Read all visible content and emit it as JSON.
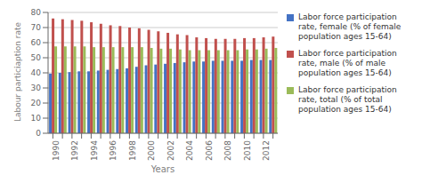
{
  "chart_data": {
    "type": "bar",
    "xlabel": "Years",
    "ylabel": "Labour particiaption rate",
    "categories": [
      "1990",
      null,
      "1992",
      null,
      "1994",
      null,
      "1996",
      null,
      "1998",
      null,
      "2000",
      null,
      "2002",
      null,
      "2004",
      null,
      "2006",
      null,
      "2008",
      null,
      "2010",
      null,
      "2012",
      null
    ],
    "series": [
      {
        "name": "Labor force participation\nrate, female (% of female\npopulation ages 15-64)",
        "color": "#4472C4",
        "values": [
          39.5,
          40.0,
          40.5,
          41.0,
          41.0,
          41.5,
          42.0,
          42.5,
          43.0,
          44.0,
          45.0,
          45.5,
          46.0,
          46.5,
          47.0,
          47.5,
          47.5,
          48.0,
          48.0,
          48.0,
          48.0,
          48.5,
          48.5,
          48.5
        ]
      },
      {
        "name": "Labor force participation\nrate, male (% of male\npopulation ages 15-64)",
        "color": "#C0504D",
        "values": [
          76.0,
          75.5,
          75.0,
          74.5,
          73.5,
          72.5,
          71.5,
          71.0,
          70.0,
          69.5,
          68.5,
          67.5,
          66.5,
          65.5,
          65.0,
          63.5,
          63.0,
          62.5,
          62.5,
          62.5,
          63.0,
          63.0,
          63.5,
          64.0
        ]
      },
      {
        "name": "Labor force participation\nrate, total (% of total\npopulation ages 15-64)",
        "color": "#9BBB59",
        "values": [
          57.5,
          57.5,
          57.5,
          57.5,
          57.0,
          57.0,
          57.0,
          57.0,
          57.0,
          57.0,
          56.5,
          56.0,
          56.0,
          55.5,
          55.0,
          55.0,
          55.0,
          55.0,
          55.0,
          55.0,
          55.5,
          55.5,
          56.0,
          56.5
        ]
      }
    ],
    "ylim": [
      0,
      80
    ],
    "yticks": [
      0,
      10,
      20,
      30,
      40,
      50,
      60,
      70,
      80
    ],
    "grid": true,
    "legend": "right"
  }
}
